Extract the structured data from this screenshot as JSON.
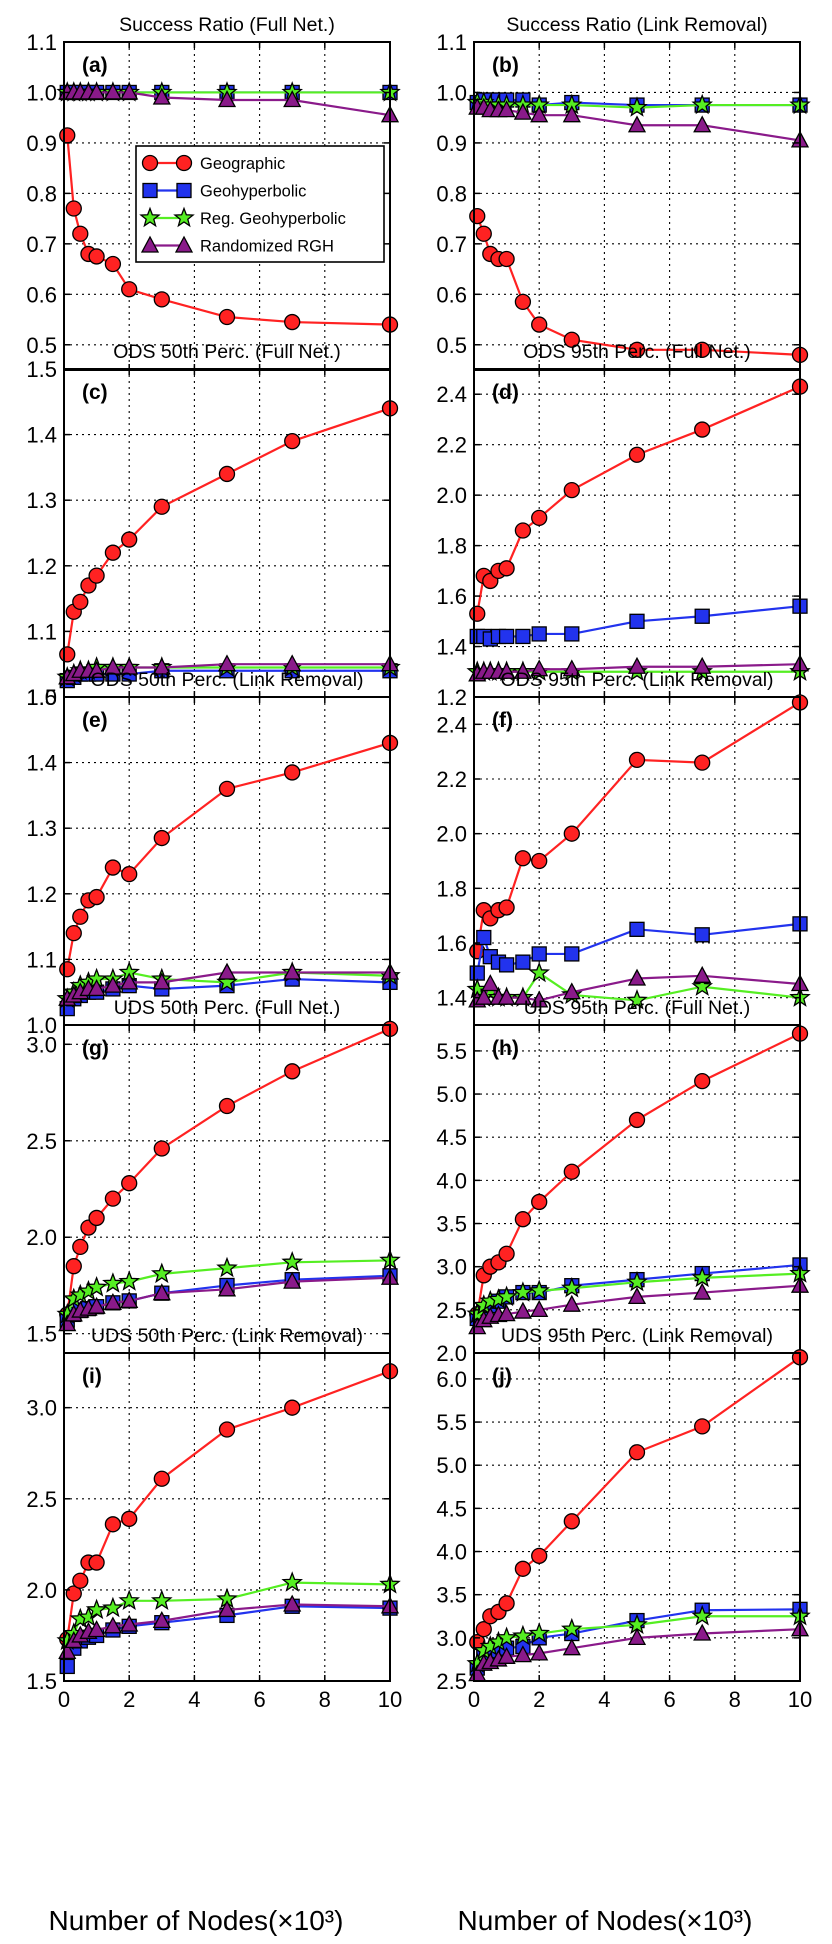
{
  "legend_labels": [
    "Geographic",
    "Geohyperbolic",
    "Reg. Geohyperbolic",
    "Randomized RGH"
  ],
  "x_axis_title": "Number of Nodes(×10³)",
  "chart_data": [
    {
      "type": "line",
      "panel_label": "(a)",
      "title": "Success Ratio (Full Net.)",
      "xlim": [
        0,
        10
      ],
      "ylim": [
        0.45,
        1.1
      ],
      "xticks": [
        0,
        2,
        4,
        6,
        8,
        10
      ],
      "yticks": [
        0.5,
        0.6,
        0.7,
        0.8,
        0.9,
        1.0,
        1.1
      ],
      "ytick_labels": [
        "0.5",
        "0.6",
        "0.7",
        "0.8",
        "0.9",
        "1.0",
        "1.1"
      ],
      "show_x_tick_labels": false,
      "legend": "center",
      "x": [
        0.1,
        0.3,
        0.5,
        0.75,
        1.0,
        1.5,
        2.0,
        3.0,
        5.0,
        7.0,
        10.0
      ],
      "series": [
        {
          "name": "Geographic",
          "values": [
            0.915,
            0.77,
            0.72,
            0.68,
            0.675,
            0.66,
            0.61,
            0.59,
            0.555,
            0.545,
            0.54
          ]
        },
        {
          "name": "Geohyperbolic",
          "values": [
            1.0,
            1.0,
            1.0,
            1.0,
            1.0,
            1.0,
            1.0,
            1.0,
            1.0,
            1.0,
            1.0
          ]
        },
        {
          "name": "Reg. Geohyperbolic",
          "values": [
            1.0,
            1.0,
            1.0,
            1.0,
            1.0,
            1.0,
            1.0,
            1.0,
            1.0,
            1.0,
            1.0
          ]
        },
        {
          "name": "Randomized RGH",
          "values": [
            1.0,
            1.0,
            1.0,
            1.0,
            1.0,
            1.0,
            1.0,
            0.99,
            0.985,
            0.985,
            0.955
          ]
        }
      ]
    },
    {
      "type": "line",
      "panel_label": "(b)",
      "title": "Success Ratio (Link Removal)",
      "xlim": [
        0,
        10
      ],
      "ylim": [
        0.45,
        1.1
      ],
      "xticks": [
        0,
        2,
        4,
        6,
        8,
        10
      ],
      "yticks": [
        0.5,
        0.6,
        0.7,
        0.8,
        0.9,
        1.0,
        1.1
      ],
      "ytick_labels": [
        "0.5",
        "0.6",
        "0.7",
        "0.8",
        "0.9",
        "1.0",
        "1.1"
      ],
      "show_x_tick_labels": false,
      "legend": "none",
      "x": [
        0.1,
        0.3,
        0.5,
        0.75,
        1.0,
        1.5,
        2.0,
        3.0,
        5.0,
        7.0,
        10.0
      ],
      "series": [
        {
          "name": "Geographic",
          "values": [
            0.755,
            0.72,
            0.68,
            0.67,
            0.67,
            0.585,
            0.54,
            0.51,
            0.49,
            0.49,
            0.48
          ]
        },
        {
          "name": "Geohyperbolic",
          "values": [
            0.98,
            0.985,
            0.985,
            0.985,
            0.985,
            0.985,
            0.975,
            0.98,
            0.975,
            0.975,
            0.975
          ]
        },
        {
          "name": "Reg. Geohyperbolic",
          "values": [
            0.98,
            0.98,
            0.975,
            0.975,
            0.975,
            0.975,
            0.975,
            0.975,
            0.97,
            0.975,
            0.975
          ]
        },
        {
          "name": "Randomized RGH",
          "values": [
            0.97,
            0.97,
            0.965,
            0.965,
            0.965,
            0.96,
            0.955,
            0.955,
            0.935,
            0.935,
            0.905
          ]
        }
      ]
    },
    {
      "type": "line",
      "panel_label": "(c)",
      "title": "ODS 50th Perc. (Full Net.)",
      "xlim": [
        0,
        10
      ],
      "ylim": [
        1.0,
        1.5
      ],
      "xticks": [
        0,
        2,
        4,
        6,
        8,
        10
      ],
      "yticks": [
        1.0,
        1.1,
        1.2,
        1.3,
        1.4,
        1.5
      ],
      "ytick_labels": [
        "1.0",
        "1.1",
        "1.2",
        "1.3",
        "1.4",
        "1.5"
      ],
      "show_x_tick_labels": false,
      "legend": "none",
      "x": [
        0.1,
        0.3,
        0.5,
        0.75,
        1.0,
        1.5,
        2.0,
        3.0,
        5.0,
        7.0,
        10.0
      ],
      "series": [
        {
          "name": "Geographic",
          "values": [
            1.065,
            1.13,
            1.145,
            1.17,
            1.185,
            1.22,
            1.24,
            1.29,
            1.34,
            1.39,
            1.44
          ]
        },
        {
          "name": "Geohyperbolic",
          "values": [
            1.025,
            1.03,
            1.035,
            1.035,
            1.035,
            1.035,
            1.035,
            1.04,
            1.04,
            1.04,
            1.04
          ]
        },
        {
          "name": "Reg. Geohyperbolic",
          "values": [
            1.03,
            1.035,
            1.04,
            1.04,
            1.045,
            1.045,
            1.045,
            1.045,
            1.045,
            1.045,
            1.045
          ]
        },
        {
          "name": "Randomized RGH",
          "values": [
            1.03,
            1.035,
            1.04,
            1.04,
            1.04,
            1.045,
            1.045,
            1.045,
            1.05,
            1.05,
            1.05
          ]
        }
      ]
    },
    {
      "type": "line",
      "panel_label": "(d)",
      "title": "ODS 95th Perc. (Full Net.)",
      "xlim": [
        0,
        10
      ],
      "ylim": [
        1.2,
        2.5
      ],
      "xticks": [
        0,
        2,
        4,
        6,
        8,
        10
      ],
      "yticks": [
        1.2,
        1.4,
        1.6,
        1.8,
        2.0,
        2.2,
        2.4
      ],
      "ytick_labels": [
        "1.2",
        "1.4",
        "1.6",
        "1.8",
        "2.0",
        "2.2",
        "2.4"
      ],
      "show_x_tick_labels": false,
      "legend": "none",
      "x": [
        0.1,
        0.3,
        0.5,
        0.75,
        1.0,
        1.5,
        2.0,
        3.0,
        5.0,
        7.0,
        10.0
      ],
      "series": [
        {
          "name": "Geographic",
          "values": [
            1.53,
            1.68,
            1.66,
            1.7,
            1.71,
            1.86,
            1.91,
            2.02,
            2.16,
            2.26,
            2.43
          ]
        },
        {
          "name": "Geohyperbolic",
          "values": [
            1.44,
            1.44,
            1.43,
            1.44,
            1.44,
            1.44,
            1.45,
            1.45,
            1.5,
            1.52,
            1.56
          ]
        },
        {
          "name": "Reg. Geohyperbolic",
          "values": [
            1.3,
            1.3,
            1.3,
            1.3,
            1.3,
            1.3,
            1.3,
            1.3,
            1.3,
            1.3,
            1.3
          ]
        },
        {
          "name": "Randomized RGH",
          "values": [
            1.29,
            1.3,
            1.3,
            1.3,
            1.3,
            1.3,
            1.31,
            1.31,
            1.32,
            1.32,
            1.33
          ]
        }
      ]
    },
    {
      "type": "line",
      "panel_label": "(e)",
      "title": "ODS 50th Perc. (Link Removal)",
      "xlim": [
        0,
        10
      ],
      "ylim": [
        1.0,
        1.5
      ],
      "xticks": [
        0,
        2,
        4,
        6,
        8,
        10
      ],
      "yticks": [
        1.0,
        1.1,
        1.2,
        1.3,
        1.4,
        1.5
      ],
      "ytick_labels": [
        "1.0",
        "1.1",
        "1.2",
        "1.3",
        "1.4",
        "1.5"
      ],
      "show_x_tick_labels": false,
      "legend": "none",
      "x": [
        0.1,
        0.3,
        0.5,
        0.75,
        1.0,
        1.5,
        2.0,
        3.0,
        5.0,
        7.0,
        10.0
      ],
      "series": [
        {
          "name": "Geographic",
          "values": [
            1.085,
            1.14,
            1.165,
            1.19,
            1.195,
            1.24,
            1.23,
            1.285,
            1.36,
            1.385,
            1.43
          ]
        },
        {
          "name": "Geohyperbolic",
          "values": [
            1.025,
            1.04,
            1.045,
            1.05,
            1.05,
            1.055,
            1.06,
            1.055,
            1.06,
            1.07,
            1.065
          ]
        },
        {
          "name": "Reg. Geohyperbolic",
          "values": [
            1.04,
            1.05,
            1.06,
            1.065,
            1.07,
            1.07,
            1.08,
            1.07,
            1.065,
            1.08,
            1.075
          ]
        },
        {
          "name": "Randomized RGH",
          "values": [
            1.04,
            1.045,
            1.05,
            1.055,
            1.055,
            1.06,
            1.065,
            1.065,
            1.08,
            1.08,
            1.08
          ]
        }
      ]
    },
    {
      "type": "line",
      "panel_label": "(f)",
      "title": "ODS 95th Perc. (Link Removal)",
      "xlim": [
        0,
        10
      ],
      "ylim": [
        1.3,
        2.5
      ],
      "xticks": [
        0,
        2,
        4,
        6,
        8,
        10
      ],
      "yticks": [
        1.4,
        1.6,
        1.8,
        2.0,
        2.2,
        2.4
      ],
      "ytick_labels": [
        "1.4",
        "1.6",
        "1.8",
        "2.0",
        "2.2",
        "2.4"
      ],
      "show_x_tick_labels": false,
      "legend": "none",
      "x": [
        0.1,
        0.3,
        0.5,
        0.75,
        1.0,
        1.5,
        2.0,
        3.0,
        5.0,
        7.0,
        10.0
      ],
      "series": [
        {
          "name": "Geographic",
          "values": [
            1.57,
            1.72,
            1.69,
            1.72,
            1.73,
            1.91,
            1.9,
            2.0,
            2.27,
            2.26,
            2.48
          ]
        },
        {
          "name": "Geohyperbolic",
          "values": [
            1.49,
            1.62,
            1.55,
            1.53,
            1.52,
            1.53,
            1.56,
            1.56,
            1.65,
            1.63,
            1.67
          ]
        },
        {
          "name": "Reg. Geohyperbolic",
          "values": [
            1.43,
            1.4,
            1.42,
            1.4,
            1.4,
            1.4,
            1.49,
            1.41,
            1.39,
            1.44,
            1.4
          ]
        },
        {
          "name": "Randomized RGH",
          "values": [
            1.39,
            1.4,
            1.45,
            1.4,
            1.4,
            1.4,
            1.39,
            1.42,
            1.47,
            1.48,
            1.45
          ]
        }
      ]
    },
    {
      "type": "line",
      "panel_label": "(g)",
      "title": "UDS 50th Perc. (Full Net.)",
      "xlim": [
        0,
        10
      ],
      "ylim": [
        1.4,
        3.1
      ],
      "xticks": [
        0,
        2,
        4,
        6,
        8,
        10
      ],
      "yticks": [
        1.5,
        2.0,
        2.5,
        3.0
      ],
      "ytick_labels": [
        "1.5",
        "2.0",
        "2.5",
        "3.0"
      ],
      "show_x_tick_labels": false,
      "legend": "none",
      "x": [
        0.1,
        0.3,
        0.5,
        0.75,
        1.0,
        1.5,
        2.0,
        3.0,
        5.0,
        7.0,
        10.0
      ],
      "series": [
        {
          "name": "Geographic",
          "values": [
            1.6,
            1.85,
            1.95,
            2.05,
            2.1,
            2.2,
            2.28,
            2.46,
            2.68,
            2.86,
            3.08
          ]
        },
        {
          "name": "Geohyperbolic",
          "values": [
            1.57,
            1.6,
            1.62,
            1.63,
            1.64,
            1.66,
            1.67,
            1.71,
            1.75,
            1.78,
            1.8
          ]
        },
        {
          "name": "Reg. Geohyperbolic",
          "values": [
            1.6,
            1.68,
            1.7,
            1.72,
            1.74,
            1.76,
            1.77,
            1.81,
            1.84,
            1.87,
            1.88
          ]
        },
        {
          "name": "Randomized RGH",
          "values": [
            1.55,
            1.6,
            1.62,
            1.63,
            1.64,
            1.66,
            1.67,
            1.71,
            1.73,
            1.77,
            1.79
          ]
        }
      ]
    },
    {
      "type": "line",
      "panel_label": "(h)",
      "title": "UDS 95th Perc. (Full Net.)",
      "xlim": [
        0,
        10
      ],
      "ylim": [
        2.0,
        5.8
      ],
      "xticks": [
        0,
        2,
        4,
        6,
        8,
        10
      ],
      "yticks": [
        2.0,
        2.5,
        3.0,
        3.5,
        4.0,
        4.5,
        5.0,
        5.5
      ],
      "ytick_labels": [
        "2.0",
        "2.5",
        "3.0",
        "3.5",
        "4.0",
        "4.5",
        "5.0",
        "5.5"
      ],
      "show_x_tick_labels": false,
      "legend": "none",
      "x": [
        0.1,
        0.3,
        0.5,
        0.75,
        1.0,
        1.5,
        2.0,
        3.0,
        5.0,
        7.0,
        10.0
      ],
      "series": [
        {
          "name": "Geographic",
          "values": [
            2.45,
            2.9,
            3.0,
            3.05,
            3.15,
            3.55,
            3.75,
            4.1,
            4.7,
            5.15,
            5.7
          ]
        },
        {
          "name": "Geohyperbolic",
          "values": [
            2.4,
            2.5,
            2.55,
            2.6,
            2.65,
            2.7,
            2.7,
            2.78,
            2.85,
            2.92,
            3.02
          ]
        },
        {
          "name": "Reg. Geohyperbolic",
          "values": [
            2.45,
            2.55,
            2.6,
            2.62,
            2.65,
            2.7,
            2.72,
            2.75,
            2.82,
            2.87,
            2.92
          ]
        },
        {
          "name": "Randomized RGH",
          "values": [
            2.3,
            2.38,
            2.42,
            2.44,
            2.45,
            2.48,
            2.5,
            2.56,
            2.65,
            2.7,
            2.78
          ]
        }
      ]
    },
    {
      "type": "line",
      "panel_label": "(i)",
      "title": "UDS 50th Perc. (Link Removal)",
      "xlim": [
        0,
        10
      ],
      "ylim": [
        1.5,
        3.3
      ],
      "xticks": [
        0,
        2,
        4,
        6,
        8,
        10
      ],
      "yticks": [
        1.5,
        2.0,
        2.5,
        3.0
      ],
      "ytick_labels": [
        "1.5",
        "2.0",
        "2.5",
        "3.0"
      ],
      "show_x_tick_labels": true,
      "legend": "none",
      "x": [
        0.1,
        0.3,
        0.5,
        0.75,
        1.0,
        1.5,
        2.0,
        3.0,
        5.0,
        7.0,
        10.0
      ],
      "series": [
        {
          "name": "Geographic",
          "values": [
            1.73,
            1.98,
            2.05,
            2.15,
            2.15,
            2.36,
            2.39,
            2.61,
            2.88,
            3.0,
            3.2
          ]
        },
        {
          "name": "Geohyperbolic",
          "values": [
            1.58,
            1.68,
            1.72,
            1.74,
            1.75,
            1.78,
            1.8,
            1.82,
            1.86,
            1.91,
            1.9
          ]
        },
        {
          "name": "Reg. Geohyperbolic",
          "values": [
            1.72,
            1.76,
            1.84,
            1.85,
            1.89,
            1.9,
            1.94,
            1.94,
            1.95,
            2.04,
            2.03
          ]
        },
        {
          "name": "Randomized RGH",
          "values": [
            1.66,
            1.72,
            1.75,
            1.77,
            1.78,
            1.8,
            1.81,
            1.83,
            1.89,
            1.92,
            1.91
          ]
        }
      ]
    },
    {
      "type": "line",
      "panel_label": "(j)",
      "title": "UDS 95th Perc. (Link Removal)",
      "xlim": [
        0,
        10
      ],
      "ylim": [
        2.5,
        6.3
      ],
      "xticks": [
        0,
        2,
        4,
        6,
        8,
        10
      ],
      "yticks": [
        2.5,
        3.0,
        3.5,
        4.0,
        4.5,
        5.0,
        5.5,
        6.0
      ],
      "ytick_labels": [
        "2.5",
        "3.0",
        "3.5",
        "4.0",
        "4.5",
        "5.0",
        "5.5",
        "6.0"
      ],
      "show_x_tick_labels": true,
      "legend": "none",
      "x": [
        0.1,
        0.3,
        0.5,
        0.75,
        1.0,
        1.5,
        2.0,
        3.0,
        5.0,
        7.0,
        10.0
      ],
      "series": [
        {
          "name": "Geographic",
          "values": [
            2.95,
            3.1,
            3.25,
            3.3,
            3.4,
            3.8,
            3.95,
            4.35,
            5.15,
            5.45,
            6.25
          ]
        },
        {
          "name": "Geohyperbolic",
          "values": [
            2.65,
            2.8,
            2.82,
            2.85,
            2.88,
            2.9,
            3.0,
            3.05,
            3.2,
            3.32,
            3.33
          ]
        },
        {
          "name": "Reg. Geohyperbolic",
          "values": [
            2.7,
            2.85,
            2.9,
            2.95,
            3.0,
            3.02,
            3.05,
            3.1,
            3.15,
            3.25,
            3.25
          ]
        },
        {
          "name": "Randomized RGH",
          "values": [
            2.58,
            2.7,
            2.72,
            2.75,
            2.78,
            2.8,
            2.82,
            2.88,
            3.0,
            3.05,
            3.1
          ]
        }
      ]
    }
  ]
}
